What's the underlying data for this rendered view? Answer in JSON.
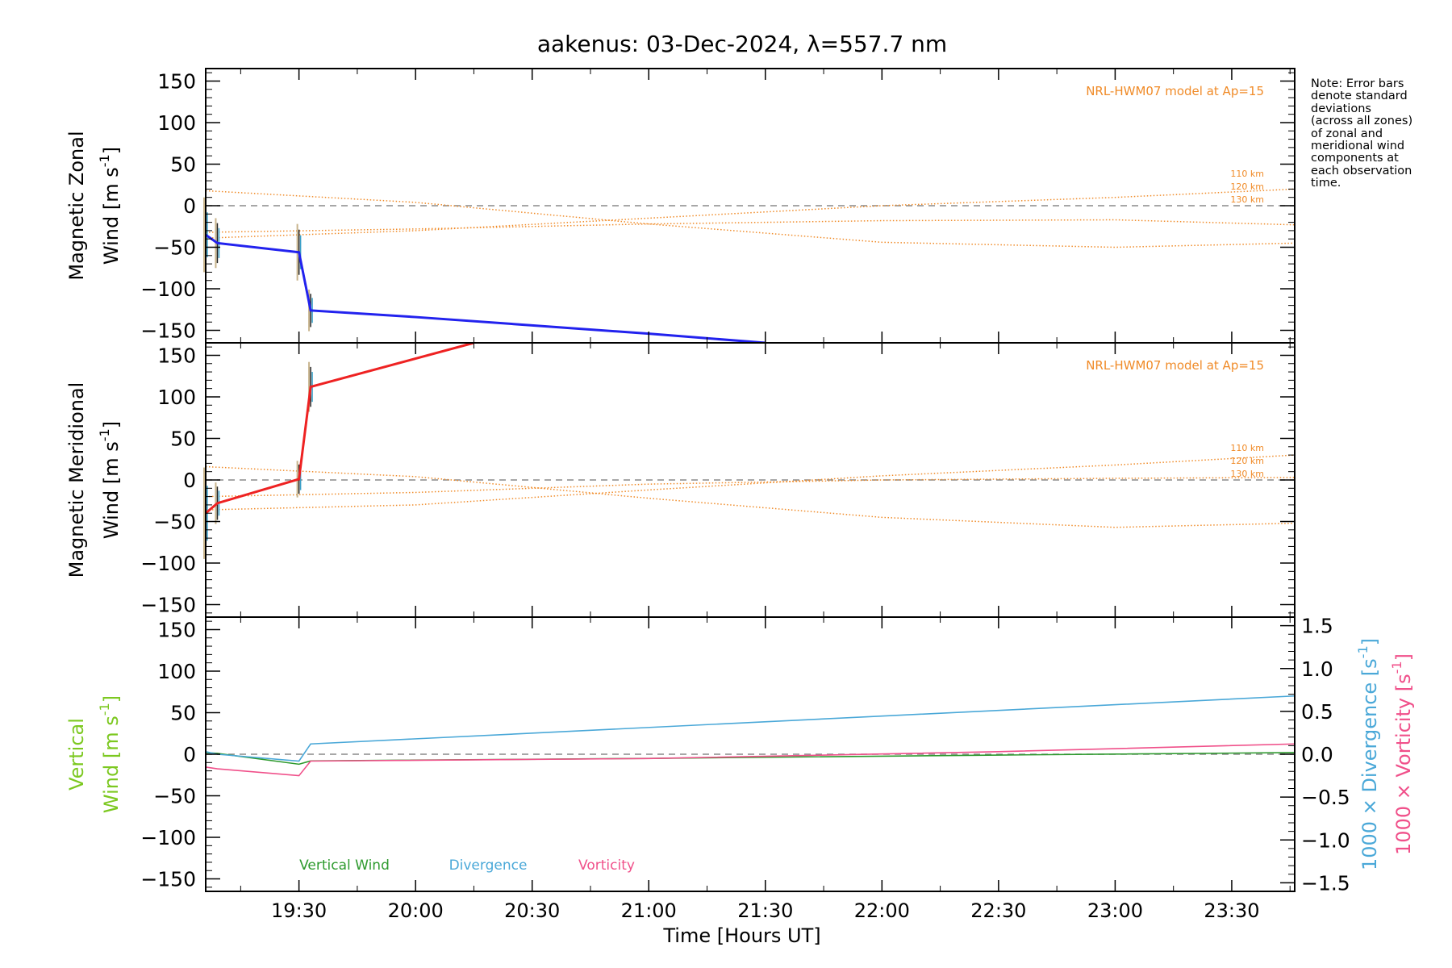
{
  "chart_data": {
    "title": "aakenus: 03-Dec-2024, λ=557.7 nm",
    "xlabel": "Time [Hours UT]",
    "x_tick_labels": [
      "19:30",
      "20:00",
      "20:30",
      "21:00",
      "21:30",
      "22:00",
      "22:30",
      "23:00",
      "23:30"
    ],
    "x_tick_values": [
      19.5,
      20.0,
      20.5,
      21.0,
      21.5,
      22.0,
      22.5,
      23.0,
      23.5
    ],
    "xlim": [
      19.1,
      23.77
    ],
    "note": [
      "Note: Error bars",
      "denote standard",
      "deviations",
      "(across all zones)",
      "of zonal and",
      "meridional wind",
      "components at",
      "each observation",
      "time."
    ],
    "panels": [
      {
        "type": "line",
        "ylabel_line1": "Magnetic Zonal",
        "ylabel_line2": "Wind [m s",
        "ylabel_exp": "-1",
        "ylabel_close": "]",
        "ylim": [
          -165,
          165
        ],
        "y_ticks": [
          150,
          100,
          50,
          0,
          -50,
          -100,
          -150
        ],
        "model_label": "NRL-HWM07 model at Ap=15",
        "series": [
          {
            "color": "#2222ee",
            "x": [
              19.1,
              19.15,
              19.5,
              19.55,
              20.0,
              20.5,
              21.0,
              21.5
            ],
            "y": [
              -35,
              -45,
              -56,
              -126,
              -134,
              -144,
              -154,
              -165
            ]
          }
        ],
        "errorbars": [
          {
            "x": 19.1,
            "y": -35,
            "err": 45
          },
          {
            "x": 19.15,
            "y": -45,
            "err": 30
          },
          {
            "x": 19.5,
            "y": -56,
            "err": 34
          },
          {
            "x": 19.55,
            "y": -126,
            "err": 25
          }
        ],
        "model_lines": [
          {
            "label": "110 km",
            "x": [
              19.1,
              20.0,
              21.0,
              22.0,
              23.0,
              23.77
            ],
            "y": [
              18,
              4,
              -22,
              -44,
              -50,
              -45
            ]
          },
          {
            "label": "120 km",
            "x": [
              19.1,
              20.0,
              21.0,
              22.0,
              23.0,
              23.77
            ],
            "y": [
              -39,
              -30,
              -15,
              0,
              10,
              20
            ]
          },
          {
            "label": "130 km",
            "x": [
              19.1,
              20.0,
              21.0,
              22.0,
              23.0,
              23.77
            ],
            "y": [
              -32,
              -28,
              -22,
              -18,
              -17,
              -23
            ]
          }
        ]
      },
      {
        "type": "line",
        "ylabel_line1": "Magnetic Meridional",
        "ylabel_line2": "Wind [m s",
        "ylabel_exp": "-1",
        "ylabel_close": "]",
        "ylim": [
          -165,
          165
        ],
        "y_ticks": [
          150,
          100,
          50,
          0,
          -50,
          -100,
          -150
        ],
        "model_label": "NRL-HWM07 model at Ap=15",
        "series": [
          {
            "color": "#ee2222",
            "x": [
              19.1,
              19.15,
              19.5,
              19.55,
              20.25
            ],
            "y": [
              -40,
              -28,
              1,
              112,
              165
            ]
          }
        ],
        "errorbars": [
          {
            "x": 19.1,
            "y": -40,
            "err": 55
          },
          {
            "x": 19.15,
            "y": -28,
            "err": 25
          },
          {
            "x": 19.5,
            "y": 1,
            "err": 22
          },
          {
            "x": 19.55,
            "y": 112,
            "err": 30
          }
        ],
        "model_lines": [
          {
            "label": "110 km",
            "x": [
              19.1,
              20.0,
              21.0,
              22.0,
              23.0,
              23.77
            ],
            "y": [
              16,
              4,
              -22,
              -45,
              -57,
              -52
            ]
          },
          {
            "label": "120 km",
            "x": [
              19.1,
              20.0,
              21.0,
              22.0,
              23.0,
              23.77
            ],
            "y": [
              -36,
              -30,
              -12,
              5,
              18,
              30
            ]
          },
          {
            "label": "130 km",
            "x": [
              19.1,
              20.0,
              21.0,
              22.0,
              23.0,
              23.77
            ],
            "y": [
              -20,
              -15,
              -5,
              0,
              2,
              3
            ]
          }
        ]
      },
      {
        "type": "line",
        "ylabel_line1": "Vertical",
        "ylabel_line2": "Wind [m s",
        "ylabel_exp": "-1",
        "ylabel_close": "]",
        "ylim": [
          -165,
          165
        ],
        "y_ticks": [
          150,
          100,
          50,
          0,
          -50,
          -100,
          -150
        ],
        "y2lim": [
          -1.6,
          1.6
        ],
        "y2_ticks": [
          1.5,
          1.0,
          0.5,
          0.0,
          -0.5,
          -1.0,
          -1.5
        ],
        "y2_tick_labels": [
          "1.5",
          "1.0",
          "0.5",
          "0.0",
          "-0.5",
          "-1.0",
          "-1.5"
        ],
        "y2label_div": "1000 × Divergence [s",
        "y2label_vor": "1000 × Vorticity [s",
        "y2label_exp": "-1",
        "y2label_close": "]",
        "legend": [
          "Vertical Wind",
          "Divergence",
          "Vorticity"
        ],
        "series": [
          {
            "name": "Vertical Wind",
            "color": "#2e9a2e",
            "axis": "left",
            "x": [
              19.1,
              19.15,
              19.5,
              19.55,
              21.0,
              22.5,
              23.77
            ],
            "y": [
              2,
              1,
              -12,
              -8,
              -5,
              -1,
              2
            ]
          },
          {
            "name": "Divergence",
            "color": "#4aa8d8",
            "axis": "right",
            "x": [
              19.1,
              19.15,
              19.5,
              19.55,
              23.77
            ],
            "y": [
              0.03,
              0.0,
              -0.08,
              0.12,
              0.68
            ]
          },
          {
            "name": "Vorticity",
            "color": "#f0508a",
            "axis": "right",
            "x": [
              19.1,
              19.15,
              19.5,
              19.55,
              21.0,
              22.5,
              23.77
            ],
            "y": [
              -0.15,
              -0.17,
              -0.25,
              -0.08,
              -0.05,
              0.03,
              0.12
            ]
          }
        ]
      }
    ]
  },
  "colors": {
    "zonal": "#2222ee",
    "meridional": "#ee2222",
    "model": "#f08b28",
    "vertical": "#2e9a2e",
    "vertical_label": "#7cc820",
    "divergence": "#4aa8d8",
    "vorticity": "#f0508a",
    "zero_line": "#8a8a8a"
  }
}
